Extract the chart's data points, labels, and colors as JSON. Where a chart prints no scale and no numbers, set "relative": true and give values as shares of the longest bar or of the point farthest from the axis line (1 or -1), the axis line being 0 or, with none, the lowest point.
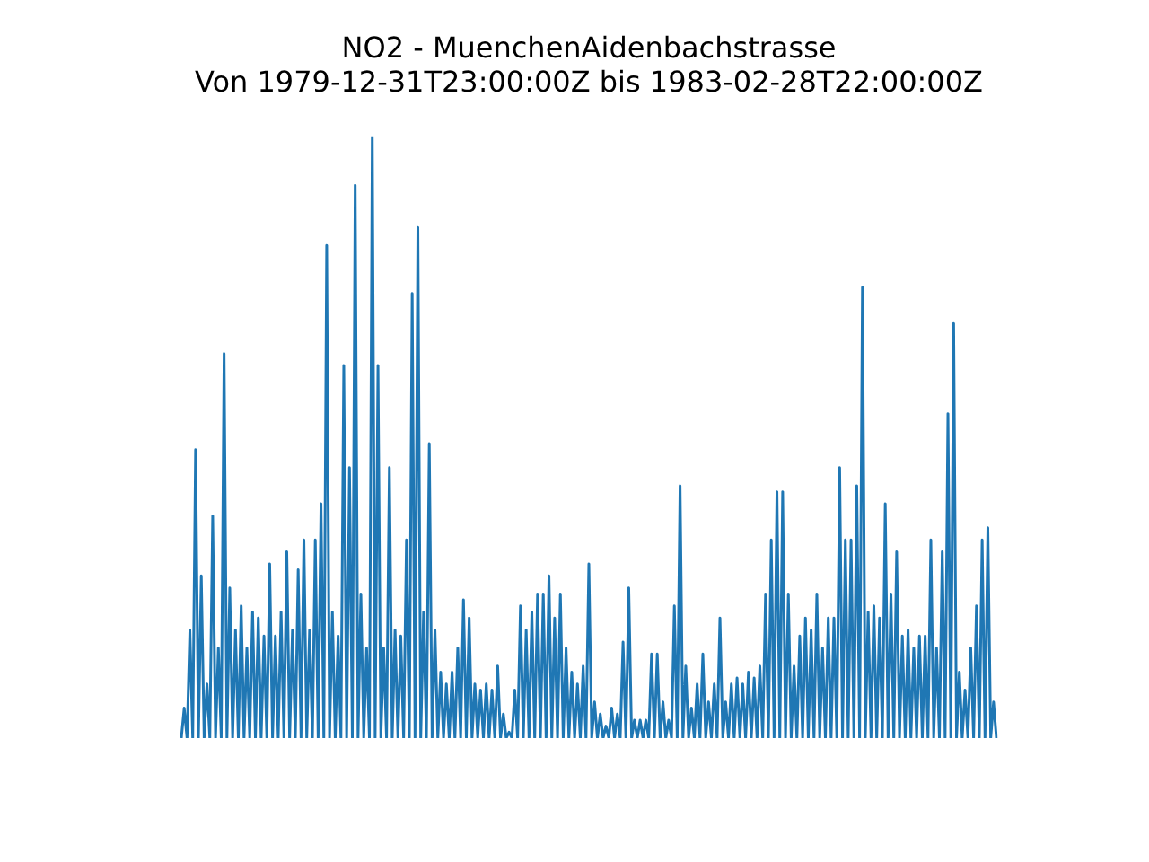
{
  "chart_data": {
    "type": "line",
    "title": "NO2 - MuenchenAidenbachstrasse",
    "subtitle": "Von 1979-12-31T23:00:00Z bis 1983-02-28T22:00:00Z",
    "relative": true,
    "categories": [
      null,
      null,
      null,
      null,
      null,
      null,
      null,
      null,
      null,
      null,
      null,
      null,
      null,
      null,
      null,
      null,
      null,
      null,
      null,
      null,
      null,
      null,
      null,
      null,
      null,
      null,
      null,
      null,
      null,
      null,
      null,
      null,
      null,
      null,
      null,
      null,
      null,
      null,
      null,
      null,
      null,
      null,
      null,
      null,
      null,
      null,
      null,
      null,
      null,
      null,
      null,
      null,
      null,
      null,
      null,
      null,
      null,
      null,
      null,
      null,
      null,
      null,
      null,
      null,
      null,
      null,
      null,
      null,
      null,
      null,
      null,
      null,
      null,
      null,
      null,
      null,
      null,
      null,
      null,
      null,
      null,
      null,
      null,
      null,
      null,
      null,
      null,
      null,
      null,
      null,
      null,
      null,
      null,
      null,
      null,
      null,
      null,
      null,
      null,
      null,
      null,
      null,
      null,
      null,
      null,
      null,
      null,
      null,
      null,
      null,
      null,
      null,
      null,
      null,
      null,
      null,
      null,
      null,
      null,
      null,
      null,
      null,
      null,
      null,
      null,
      null,
      null,
      null,
      null,
      null,
      null,
      null,
      null,
      null,
      null,
      null,
      null,
      null,
      null,
      null,
      null,
      null,
      null,
      null,
      null,
      null,
      null,
      null,
      null,
      null,
      null,
      null,
      null,
      null,
      null,
      null,
      null,
      null,
      null,
      null,
      null,
      null,
      null,
      null,
      null,
      null,
      null,
      null,
      null,
      null,
      null,
      null,
      null,
      null,
      null,
      null,
      null,
      null,
      null,
      null,
      null,
      null,
      null,
      null,
      null,
      null,
      null,
      null,
      null,
      null,
      null,
      null,
      null,
      null,
      null,
      null,
      null,
      null,
      null,
      null,
      null,
      null,
      null,
      null,
      null,
      null,
      null,
      null,
      null,
      null,
      null,
      null,
      null,
      null,
      null,
      null,
      null,
      null,
      null,
      null,
      null,
      null,
      null,
      null,
      null,
      null,
      null,
      null,
      null,
      null,
      null,
      null,
      null,
      null,
      null,
      null,
      null,
      null,
      null,
      null,
      null,
      null,
      null,
      null,
      null,
      null,
      null,
      null,
      null,
      null,
      null,
      null,
      null,
      null,
      null,
      null,
      null,
      null,
      null,
      null,
      null,
      null,
      null,
      null,
      null,
      null,
      null,
      null,
      null,
      null,
      null,
      null,
      null,
      null,
      null,
      null,
      null,
      null,
      null,
      null,
      null,
      null,
      null,
      null,
      null,
      null,
      null
    ],
    "series": [
      {
        "color": "#1f77b4",
        "values": [
          0,
          0.05,
          0,
          0.18,
          0,
          0.48,
          0,
          0.27,
          0,
          0.09,
          0,
          0.37,
          0,
          0.15,
          0,
          0.64,
          0,
          0.25,
          0,
          0.18,
          0,
          0.22,
          0,
          0.15,
          0,
          0.21,
          0,
          0.2,
          0,
          0.17,
          0,
          0.29,
          0,
          0.17,
          0,
          0.21,
          0,
          0.31,
          0,
          0.18,
          0,
          0.28,
          0,
          0.33,
          0,
          0.18,
          0,
          0.33,
          0,
          0.39,
          0,
          0.82,
          0,
          0.21,
          0,
          0.17,
          0,
          0.62,
          0,
          0.45,
          0,
          0.92,
          0,
          0.24,
          0,
          0.15,
          0,
          1,
          0,
          0.62,
          0,
          0.15,
          0,
          0.45,
          0,
          0.18,
          0,
          0.17,
          0,
          0.33,
          0,
          0.74,
          0,
          0.85,
          0,
          0.21,
          0,
          0.49,
          0,
          0.18,
          0,
          0.11,
          0,
          0.09,
          0,
          0.11,
          0,
          0.15,
          0,
          0.23,
          0,
          0.2,
          0,
          0.09,
          0,
          0.08,
          0,
          0.09,
          0,
          0.08,
          0,
          0.12,
          0,
          0.04,
          0,
          0.01,
          0,
          0.08,
          0,
          0.22,
          0,
          0.18,
          0,
          0.21,
          0,
          0.24,
          0,
          0.24,
          0,
          0.27,
          0,
          0.2,
          0,
          0.24,
          0,
          0.15,
          0,
          0.11,
          0,
          0.09,
          0,
          0.12,
          0,
          0.29,
          0,
          0.06,
          0,
          0.04,
          0,
          0.02,
          0,
          0.05,
          0,
          0.04,
          0,
          0.16,
          0,
          0.25,
          0,
          0.03,
          0,
          0.03,
          0,
          0.03,
          0,
          0.14,
          0,
          0.14,
          0,
          0.06,
          0,
          0.03,
          0,
          0.22,
          0,
          0.42,
          0,
          0.12,
          0,
          0.05,
          0,
          0.09,
          0,
          0.14,
          0,
          0.06,
          0,
          0.09,
          0,
          0.2,
          0,
          0.06,
          0,
          0.09,
          0,
          0.1,
          0,
          0.09,
          0,
          0.11,
          0,
          0.1,
          0,
          0.12,
          0,
          0.24,
          0,
          0.33,
          0,
          0.41,
          0,
          0.41,
          0,
          0.24,
          0,
          0.12,
          0,
          0.17,
          0,
          0.2,
          0,
          0.18,
          0,
          0.24,
          0,
          0.15,
          0,
          0.2,
          0,
          0.2,
          0,
          0.45,
          0,
          0.33,
          0,
          0.33,
          0,
          0.42,
          0,
          0.75,
          0,
          0.21,
          0,
          0.22,
          0,
          0.2,
          0,
          0.39,
          0,
          0.24,
          0,
          0.31,
          0,
          0.17,
          0,
          0.18,
          0,
          0.15,
          0,
          0.17,
          0,
          0.17,
          0,
          0.33,
          0,
          0.15,
          0,
          0.31,
          0,
          0.54,
          0,
          0.69,
          0,
          0.11,
          0,
          0.08,
          0,
          0.15,
          0,
          0.22,
          0,
          0.33,
          0,
          0.35,
          0,
          0.06,
          0
        ]
      }
    ]
  }
}
